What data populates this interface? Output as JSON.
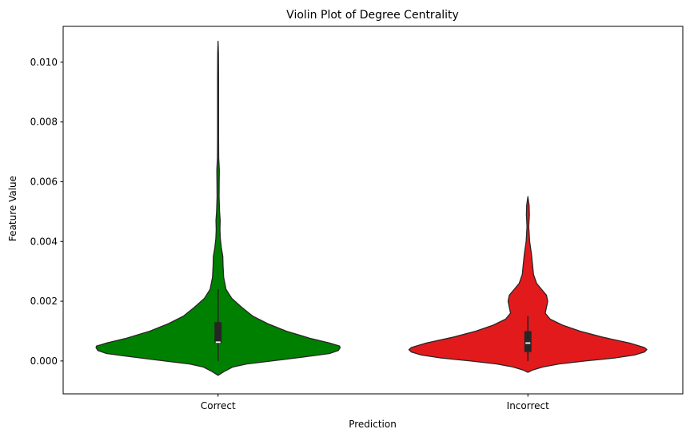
{
  "chart_data": {
    "type": "violin",
    "title": "Violin Plot of Degree Centrality",
    "xlabel": "Prediction",
    "ylabel": "Feature Value",
    "categories": [
      "Correct",
      "Incorrect"
    ],
    "ylim": [
      -0.0011,
      0.0112
    ],
    "yticks": [
      0.0,
      0.002,
      0.004,
      0.006,
      0.008,
      0.01
    ],
    "ytick_labels": [
      "0.000",
      "0.002",
      "0.004",
      "0.006",
      "0.008",
      "0.010"
    ],
    "grid": false,
    "series": [
      {
        "category": "Correct",
        "color": "#008000",
        "quartiles": {
          "q1": 0.0006,
          "median": 0.00063,
          "q3": 0.0013
        },
        "whiskers": [
          0.0,
          0.0024
        ],
        "density_profile": [
          {
            "y": -0.00048,
            "half_width": 0.0
          },
          {
            "y": -0.00035,
            "half_width": 0.05
          },
          {
            "y": -0.0002,
            "half_width": 0.12
          },
          {
            "y": -0.0001,
            "half_width": 0.23
          },
          {
            "y": 0.0,
            "half_width": 0.43
          },
          {
            "y": 0.00015,
            "half_width": 0.72
          },
          {
            "y": 0.00025,
            "half_width": 0.9
          },
          {
            "y": 0.00035,
            "half_width": 0.97
          },
          {
            "y": 0.00045,
            "half_width": 0.985
          },
          {
            "y": 0.0005,
            "half_width": 0.98
          },
          {
            "y": 0.0006,
            "half_width": 0.9
          },
          {
            "y": 0.00075,
            "half_width": 0.75
          },
          {
            "y": 0.001,
            "half_width": 0.55
          },
          {
            "y": 0.00125,
            "half_width": 0.4
          },
          {
            "y": 0.0015,
            "half_width": 0.28
          },
          {
            "y": 0.0018,
            "half_width": 0.19
          },
          {
            "y": 0.0021,
            "half_width": 0.11
          },
          {
            "y": 0.0024,
            "half_width": 0.064
          },
          {
            "y": 0.0028,
            "half_width": 0.045
          },
          {
            "y": 0.0032,
            "half_width": 0.04
          },
          {
            "y": 0.0035,
            "half_width": 0.038
          },
          {
            "y": 0.0038,
            "half_width": 0.026
          },
          {
            "y": 0.0041,
            "half_width": 0.018
          },
          {
            "y": 0.0044,
            "half_width": 0.015
          },
          {
            "y": 0.0047,
            "half_width": 0.017
          },
          {
            "y": 0.005,
            "half_width": 0.012
          },
          {
            "y": 0.0055,
            "half_width": 0.008
          },
          {
            "y": 0.006,
            "half_width": 0.009
          },
          {
            "y": 0.0064,
            "half_width": 0.01
          },
          {
            "y": 0.0068,
            "half_width": 0.005
          },
          {
            "y": 0.0075,
            "half_width": 0.004
          },
          {
            "y": 0.0085,
            "half_width": 0.004
          },
          {
            "y": 0.0095,
            "half_width": 0.004
          },
          {
            "y": 0.0103,
            "half_width": 0.003
          },
          {
            "y": 0.0107,
            "half_width": 0.0
          }
        ]
      },
      {
        "category": "Incorrect",
        "color": "#e31a1c",
        "quartiles": {
          "q1": 0.0003,
          "median": 0.0006,
          "q3": 0.001
        },
        "whiskers": [
          0.0,
          0.0015
        ],
        "density_profile": [
          {
            "y": -0.00038,
            "half_width": 0.0
          },
          {
            "y": -0.0003,
            "half_width": 0.04
          },
          {
            "y": -0.0002,
            "half_width": 0.12
          },
          {
            "y": -0.0001,
            "half_width": 0.25
          },
          {
            "y": 0.0,
            "half_width": 0.46
          },
          {
            "y": 0.0001,
            "half_width": 0.7
          },
          {
            "y": 0.0002,
            "half_width": 0.86
          },
          {
            "y": 0.0003,
            "half_width": 0.94
          },
          {
            "y": 0.00038,
            "half_width": 0.96
          },
          {
            "y": 0.00045,
            "half_width": 0.94
          },
          {
            "y": 0.0006,
            "half_width": 0.82
          },
          {
            "y": 0.0008,
            "half_width": 0.6
          },
          {
            "y": 0.001,
            "half_width": 0.42
          },
          {
            "y": 0.0012,
            "half_width": 0.28
          },
          {
            "y": 0.0014,
            "half_width": 0.18
          },
          {
            "y": 0.0016,
            "half_width": 0.14
          },
          {
            "y": 0.0018,
            "half_width": 0.15
          },
          {
            "y": 0.002,
            "half_width": 0.16
          },
          {
            "y": 0.0022,
            "half_width": 0.15
          },
          {
            "y": 0.0024,
            "half_width": 0.11
          },
          {
            "y": 0.0026,
            "half_width": 0.07
          },
          {
            "y": 0.0029,
            "half_width": 0.045
          },
          {
            "y": 0.0032,
            "half_width": 0.038
          },
          {
            "y": 0.0036,
            "half_width": 0.028
          },
          {
            "y": 0.004,
            "half_width": 0.014
          },
          {
            "y": 0.0045,
            "half_width": 0.007
          },
          {
            "y": 0.0049,
            "half_width": 0.012
          },
          {
            "y": 0.0052,
            "half_width": 0.01
          },
          {
            "y": 0.0055,
            "half_width": 0.0
          }
        ]
      }
    ]
  }
}
